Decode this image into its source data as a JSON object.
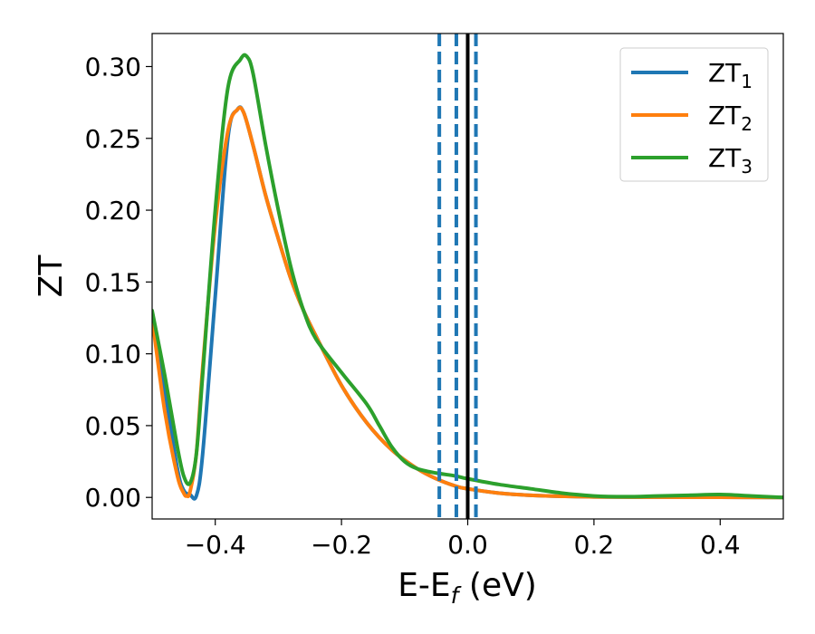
{
  "chart_data": {
    "type": "line",
    "title": "",
    "xlabel": {
      "main": "E-E",
      "sub": "f",
      "suffix": " (eV)"
    },
    "ylabel": "ZT",
    "xlim": [
      -0.5,
      0.5
    ],
    "ylim": [
      -0.015,
      0.323
    ],
    "xticks": [
      -0.4,
      -0.2,
      0.0,
      0.2,
      0.4
    ],
    "xtick_labels": [
      "−0.4",
      "−0.2",
      "0.0",
      "0.2",
      "0.4"
    ],
    "yticks": [
      0.0,
      0.05,
      0.1,
      0.15,
      0.2,
      0.25,
      0.3
    ],
    "ytick_labels": [
      "0.00",
      "0.05",
      "0.10",
      "0.15",
      "0.20",
      "0.25",
      "0.30"
    ],
    "grid": false,
    "legend_position": "top-right",
    "vlines": [
      {
        "x": 0.0,
        "style": "solid",
        "color": "#000000"
      },
      {
        "x": -0.045,
        "style": "dashed",
        "color": "#1f77b4"
      },
      {
        "x": -0.018,
        "style": "dashed",
        "color": "#1f77b4"
      },
      {
        "x": 0.013,
        "style": "dashed",
        "color": "#1f77b4"
      }
    ],
    "series": [
      {
        "name": "ZT",
        "name_sub": "1",
        "color": "#1f77b4",
        "x": [
          -0.5,
          -0.48,
          -0.46,
          -0.45,
          -0.44,
          -0.43,
          -0.42,
          -0.4,
          -0.38,
          -0.365,
          -0.355,
          -0.34,
          -0.32,
          -0.3,
          -0.28,
          -0.26,
          -0.24,
          -0.2,
          -0.16,
          -0.12,
          -0.08,
          -0.05,
          -0.02,
          0.0,
          0.05,
          0.1,
          0.15,
          0.2,
          0.3,
          0.4,
          0.5
        ],
        "y": [
          0.125,
          0.075,
          0.02,
          0.005,
          0.002,
          0.001,
          0.03,
          0.14,
          0.25,
          0.27,
          0.268,
          0.245,
          0.21,
          0.18,
          0.152,
          0.13,
          0.112,
          0.078,
          0.052,
          0.033,
          0.02,
          0.013,
          0.008,
          0.006,
          0.003,
          0.0015,
          0.0008,
          0.0004,
          0.0002,
          0.0001,
          0.0
        ]
      },
      {
        "name": "ZT",
        "name_sub": "2",
        "color": "#ff7f0e",
        "x": [
          -0.5,
          -0.48,
          -0.46,
          -0.45,
          -0.445,
          -0.44,
          -0.43,
          -0.42,
          -0.4,
          -0.38,
          -0.365,
          -0.355,
          -0.34,
          -0.32,
          -0.3,
          -0.28,
          -0.26,
          -0.24,
          -0.2,
          -0.16,
          -0.12,
          -0.08,
          -0.05,
          -0.02,
          0.0,
          0.05,
          0.1,
          0.15,
          0.2,
          0.3,
          0.4,
          0.5
        ],
        "y": [
          0.125,
          0.06,
          0.015,
          0.003,
          0.001,
          0.004,
          0.03,
          0.09,
          0.19,
          0.255,
          0.27,
          0.268,
          0.245,
          0.21,
          0.18,
          0.152,
          0.13,
          0.112,
          0.078,
          0.052,
          0.033,
          0.02,
          0.013,
          0.008,
          0.006,
          0.003,
          0.0015,
          0.0008,
          0.0004,
          0.0002,
          0.0001,
          0.0
        ]
      },
      {
        "name": "ZT",
        "name_sub": "3",
        "color": "#2ca02c",
        "x": [
          -0.5,
          -0.48,
          -0.46,
          -0.45,
          -0.44,
          -0.43,
          -0.42,
          -0.4,
          -0.38,
          -0.36,
          -0.35,
          -0.34,
          -0.32,
          -0.3,
          -0.28,
          -0.26,
          -0.24,
          -0.2,
          -0.16,
          -0.14,
          -0.12,
          -0.1,
          -0.08,
          -0.05,
          -0.02,
          0.0,
          0.05,
          0.1,
          0.15,
          0.2,
          0.25,
          0.3,
          0.35,
          0.4,
          0.45,
          0.5
        ],
        "y": [
          0.13,
          0.085,
          0.035,
          0.015,
          0.01,
          0.03,
          0.085,
          0.2,
          0.285,
          0.305,
          0.307,
          0.295,
          0.245,
          0.2,
          0.16,
          0.13,
          0.11,
          0.087,
          0.065,
          0.05,
          0.035,
          0.025,
          0.02,
          0.017,
          0.015,
          0.013,
          0.009,
          0.006,
          0.003,
          0.001,
          0.0005,
          0.001,
          0.0015,
          0.002,
          0.001,
          0.0
        ]
      }
    ]
  }
}
